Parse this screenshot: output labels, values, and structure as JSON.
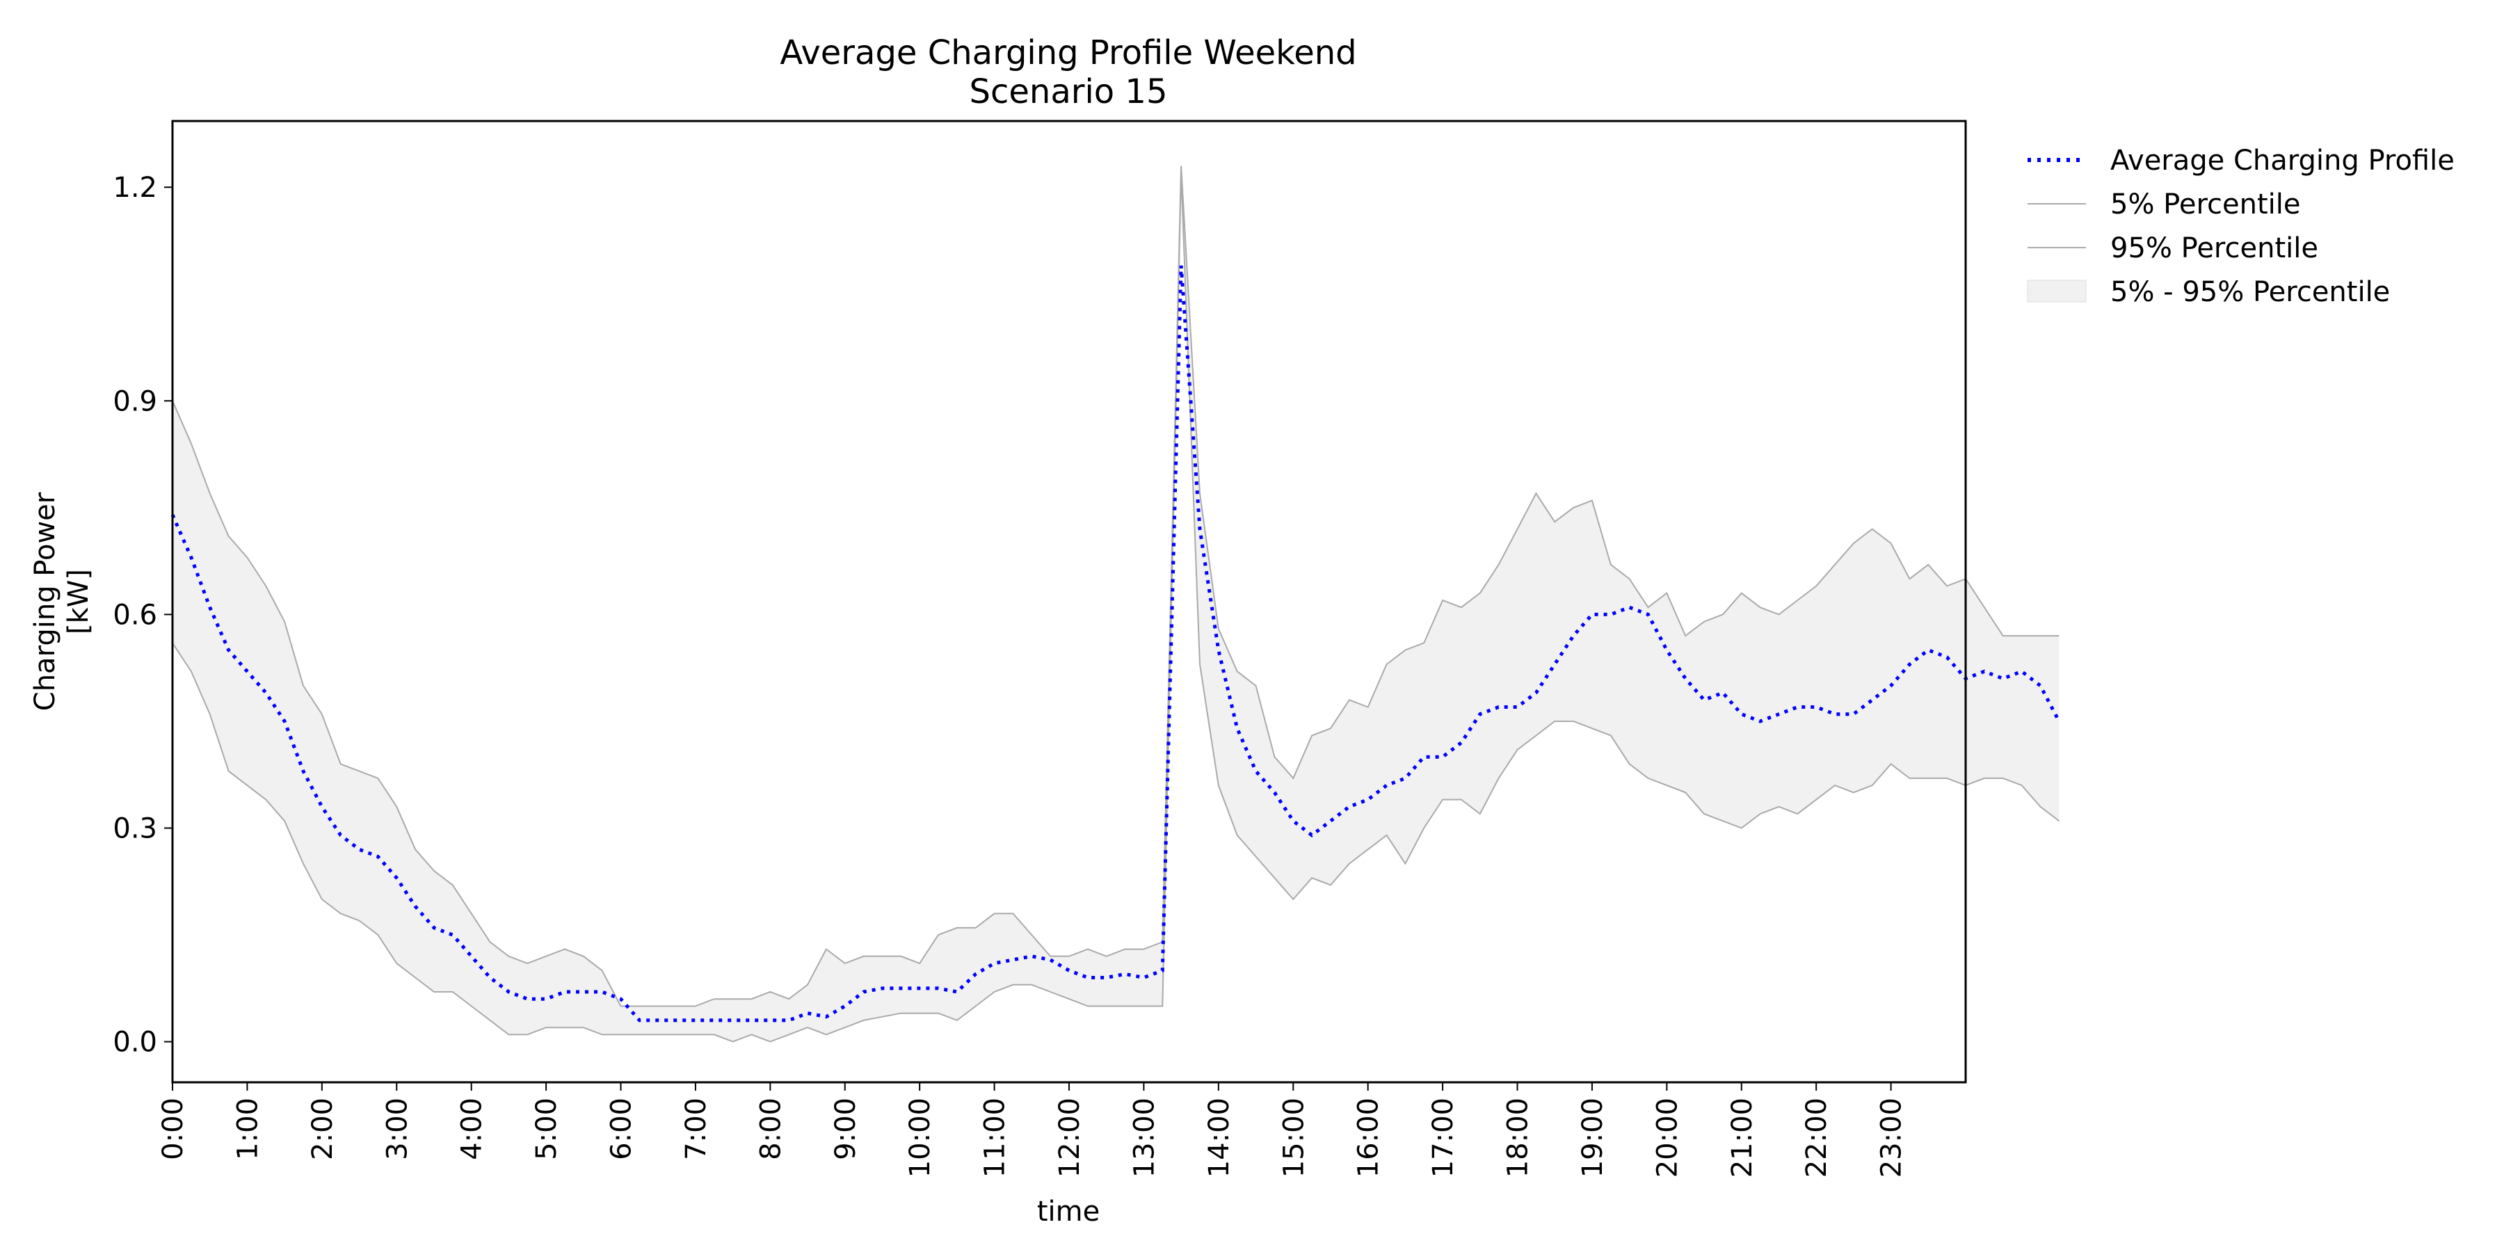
{
  "chart_data": {
    "type": "line",
    "title": "Average Charging Profile Weekend",
    "subtitle": "Scenario 15",
    "xlabel": "time",
    "ylabel": [
      "Charging Power",
      "[kW]"
    ],
    "xlim": [
      0,
      24
    ],
    "ylim": [
      -0.057,
      1.293
    ],
    "yticks": [
      0.0,
      0.3,
      0.6,
      0.9,
      1.2
    ],
    "ytick_labels": [
      "0.0",
      "0.3",
      "0.6",
      "0.9",
      "1.2"
    ],
    "xticks": [
      0,
      1,
      2,
      3,
      4,
      5,
      6,
      7,
      8,
      9,
      10,
      11,
      12,
      13,
      14,
      15,
      16,
      17,
      18,
      19,
      20,
      21,
      22,
      23
    ],
    "xtick_labels": [
      "0:00",
      "1:00",
      "2:00",
      "3:00",
      "4:00",
      "5:00",
      "6:00",
      "7:00",
      "8:00",
      "9:00",
      "10:00",
      "11:00",
      "12:00",
      "13:00",
      "14:00",
      "15:00",
      "16:00",
      "17:00",
      "18:00",
      "19:00",
      "20:00",
      "21:00",
      "22:00",
      "23:00"
    ],
    "x_step_hours": 0.25,
    "legend_position": "outside-top-right",
    "grid": false,
    "series": [
      {
        "name": "Average Charging Profile",
        "style": "dotted",
        "color": "#0000ff",
        "values": [
          0.74,
          0.68,
          0.61,
          0.55,
          0.52,
          0.49,
          0.45,
          0.38,
          0.33,
          0.29,
          0.27,
          0.26,
          0.23,
          0.19,
          0.16,
          0.15,
          0.12,
          0.09,
          0.07,
          0.06,
          0.06,
          0.07,
          0.07,
          0.07,
          0.06,
          0.03,
          0.03,
          0.03,
          0.03,
          0.03,
          0.03,
          0.03,
          0.03,
          0.03,
          0.04,
          0.035,
          0.05,
          0.07,
          0.075,
          0.075,
          0.075,
          0.075,
          0.07,
          0.095,
          0.11,
          0.115,
          0.12,
          0.115,
          0.1,
          0.09,
          0.09,
          0.095,
          0.09,
          0.1,
          1.09,
          0.72,
          0.55,
          0.44,
          0.38,
          0.35,
          0.31,
          0.29,
          0.31,
          0.33,
          0.34,
          0.36,
          0.37,
          0.4,
          0.4,
          0.42,
          0.46,
          0.47,
          0.47,
          0.49,
          0.53,
          0.57,
          0.6,
          0.6,
          0.61,
          0.6,
          0.55,
          0.51,
          0.48,
          0.49,
          0.46,
          0.45,
          0.46,
          0.47,
          0.47,
          0.46,
          0.46,
          0.48,
          0.5,
          0.53,
          0.55,
          0.54,
          0.51,
          0.52,
          0.51,
          0.52,
          0.5,
          0.45
        ]
      },
      {
        "name": "5% Percentile",
        "style": "solid",
        "color": "#aaaaaa",
        "values": [
          0.56,
          0.52,
          0.46,
          0.38,
          0.36,
          0.34,
          0.31,
          0.25,
          0.2,
          0.18,
          0.17,
          0.15,
          0.11,
          0.09,
          0.07,
          0.07,
          0.05,
          0.03,
          0.01,
          0.01,
          0.02,
          0.02,
          0.02,
          0.01,
          0.01,
          0.01,
          0.01,
          0.01,
          0.01,
          0.01,
          0.0,
          0.01,
          0.0,
          0.01,
          0.02,
          0.01,
          0.02,
          0.03,
          0.035,
          0.04,
          0.04,
          0.04,
          0.03,
          0.05,
          0.07,
          0.08,
          0.08,
          0.07,
          0.06,
          0.05,
          0.05,
          0.05,
          0.05,
          0.05,
          1.22,
          0.53,
          0.36,
          0.29,
          0.26,
          0.23,
          0.2,
          0.23,
          0.22,
          0.25,
          0.27,
          0.29,
          0.25,
          0.3,
          0.34,
          0.34,
          0.32,
          0.37,
          0.41,
          0.43,
          0.45,
          0.45,
          0.44,
          0.43,
          0.39,
          0.37,
          0.36,
          0.35,
          0.32,
          0.31,
          0.3,
          0.32,
          0.33,
          0.32,
          0.34,
          0.36,
          0.35,
          0.36,
          0.39,
          0.37,
          0.37,
          0.37,
          0.36,
          0.37,
          0.37,
          0.36,
          0.33,
          0.31
        ]
      },
      {
        "name": "95% Percentile",
        "style": "solid",
        "color": "#aaaaaa",
        "values": [
          0.9,
          0.84,
          0.77,
          0.71,
          0.68,
          0.64,
          0.59,
          0.5,
          0.46,
          0.39,
          0.38,
          0.37,
          0.33,
          0.27,
          0.24,
          0.22,
          0.18,
          0.14,
          0.12,
          0.11,
          0.12,
          0.13,
          0.12,
          0.1,
          0.05,
          0.05,
          0.05,
          0.05,
          0.05,
          0.06,
          0.06,
          0.06,
          0.07,
          0.06,
          0.08,
          0.13,
          0.11,
          0.12,
          0.12,
          0.12,
          0.11,
          0.15,
          0.16,
          0.16,
          0.18,
          0.18,
          0.15,
          0.12,
          0.12,
          0.13,
          0.12,
          0.13,
          0.13,
          0.14,
          1.23,
          0.77,
          0.58,
          0.52,
          0.5,
          0.4,
          0.37,
          0.43,
          0.44,
          0.48,
          0.47,
          0.53,
          0.55,
          0.56,
          0.62,
          0.61,
          0.63,
          0.67,
          0.72,
          0.77,
          0.73,
          0.75,
          0.76,
          0.67,
          0.65,
          0.61,
          0.63,
          0.57,
          0.59,
          0.6,
          0.63,
          0.61,
          0.6,
          0.62,
          0.64,
          0.67,
          0.7,
          0.72,
          0.7,
          0.65,
          0.67,
          0.64,
          0.65,
          0.61,
          0.57,
          0.57,
          0.57,
          0.57
        ]
      }
    ],
    "band": {
      "name": "5% - 95% Percentile",
      "color": "#f1f1f1",
      "from": "5% Percentile",
      "to": "95% Percentile"
    }
  }
}
